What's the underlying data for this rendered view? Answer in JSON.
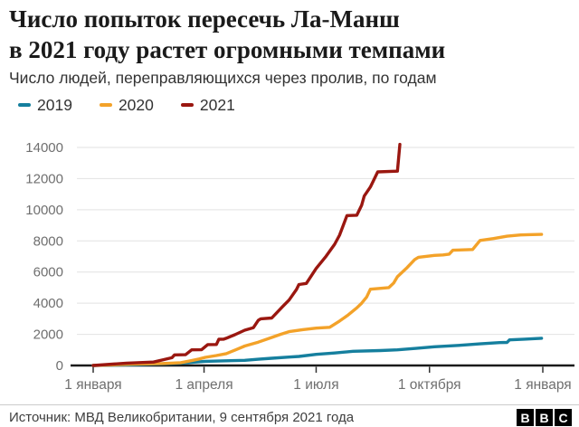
{
  "header": {
    "title_line1": "Число попыток пересечь Ла-Манш",
    "title_line2": "в 2021 году растет огромными темпами",
    "subtitle": "Число людей, переправляющихся через пролив, по годам"
  },
  "legend": {
    "items": [
      {
        "label": "2019",
        "color": "#157f9e"
      },
      {
        "label": "2020",
        "color": "#f3a229"
      },
      {
        "label": "2021",
        "color": "#9a1710"
      }
    ]
  },
  "chart_data": {
    "type": "line",
    "title": "Число попыток пересечь Ла-Манш в 2021 году растет огромными темпами",
    "subtitle": "Число людей, переправляющихся через пролив, по годам",
    "xlabel": "",
    "ylabel": "",
    "ylim": [
      0,
      14600
    ],
    "grid": true,
    "legend_position": "top",
    "y_ticks": [
      0,
      2000,
      4000,
      6000,
      8000,
      10000,
      12000,
      14000
    ],
    "x_ticks": [
      {
        "day": 0,
        "label": "1 января"
      },
      {
        "day": 90,
        "label": "1 апреля"
      },
      {
        "day": 181,
        "label": "1 июля"
      },
      {
        "day": 273,
        "label": "1 октября"
      },
      {
        "day": 365,
        "label": "1 января"
      }
    ],
    "x_unit": "day_of_year",
    "series": [
      {
        "name": "2019",
        "color": "#157f9e",
        "points": [
          [
            0,
            0
          ],
          [
            35,
            60
          ],
          [
            71,
            150
          ],
          [
            91,
            270
          ],
          [
            108,
            300
          ],
          [
            123,
            330
          ],
          [
            134,
            400
          ],
          [
            145,
            465
          ],
          [
            159,
            540
          ],
          [
            167,
            580
          ],
          [
            181,
            715
          ],
          [
            196,
            800
          ],
          [
            211,
            910
          ],
          [
            233,
            960
          ],
          [
            247,
            1005
          ],
          [
            262,
            1100
          ],
          [
            277,
            1200
          ],
          [
            299,
            1300
          ],
          [
            314,
            1390
          ],
          [
            330,
            1470
          ],
          [
            336,
            1480
          ],
          [
            338,
            1645
          ],
          [
            350,
            1690
          ],
          [
            364,
            1750
          ]
        ]
      },
      {
        "name": "2020",
        "color": "#f3a229",
        "points": [
          [
            0,
            0
          ],
          [
            30,
            80
          ],
          [
            57,
            130
          ],
          [
            71,
            180
          ],
          [
            79,
            300
          ],
          [
            86,
            420
          ],
          [
            91,
            520
          ],
          [
            100,
            640
          ],
          [
            108,
            760
          ],
          [
            115,
            980
          ],
          [
            123,
            1250
          ],
          [
            134,
            1500
          ],
          [
            145,
            1800
          ],
          [
            152,
            2000
          ],
          [
            159,
            2170
          ],
          [
            170,
            2300
          ],
          [
            181,
            2400
          ],
          [
            192,
            2450
          ],
          [
            200,
            2850
          ],
          [
            207,
            3250
          ],
          [
            214,
            3700
          ],
          [
            218,
            4000
          ],
          [
            222,
            4400
          ],
          [
            225,
            4900
          ],
          [
            240,
            5000
          ],
          [
            244,
            5300
          ],
          [
            247,
            5700
          ],
          [
            255,
            6300
          ],
          [
            261,
            6800
          ],
          [
            264,
            6950
          ],
          [
            277,
            7070
          ],
          [
            284,
            7100
          ],
          [
            289,
            7150
          ],
          [
            292,
            7400
          ],
          [
            308,
            7450
          ],
          [
            314,
            8030
          ],
          [
            325,
            8150
          ],
          [
            336,
            8300
          ],
          [
            347,
            8380
          ],
          [
            353,
            8400
          ],
          [
            364,
            8420
          ]
        ]
      },
      {
        "name": "2021",
        "color": "#9a1710",
        "points": [
          [
            0,
            0
          ],
          [
            27,
            150
          ],
          [
            49,
            220
          ],
          [
            57,
            370
          ],
          [
            64,
            500
          ],
          [
            66,
            680
          ],
          [
            75,
            690
          ],
          [
            80,
            1005
          ],
          [
            88,
            1010
          ],
          [
            93,
            1340
          ],
          [
            100,
            1350
          ],
          [
            102,
            1685
          ],
          [
            106,
            1690
          ],
          [
            108,
            1750
          ],
          [
            115,
            1975
          ],
          [
            123,
            2265
          ],
          [
            130,
            2420
          ],
          [
            134,
            2900
          ],
          [
            136,
            3000
          ],
          [
            145,
            3050
          ],
          [
            154,
            3800
          ],
          [
            159,
            4200
          ],
          [
            165,
            4880
          ],
          [
            167,
            5200
          ],
          [
            173,
            5270
          ],
          [
            181,
            6235
          ],
          [
            189,
            7010
          ],
          [
            196,
            7785
          ],
          [
            200,
            8365
          ],
          [
            206,
            9625
          ],
          [
            214,
            9650
          ],
          [
            218,
            10300
          ],
          [
            220,
            10880
          ],
          [
            225,
            11460
          ],
          [
            231,
            12430
          ],
          [
            247,
            12480
          ],
          [
            249,
            14200
          ]
        ]
      }
    ]
  },
  "footer": {
    "source": "Источник: МВД Великобритании, 9 сентября 2021 года",
    "logo_letters": [
      "B",
      "B",
      "C"
    ]
  }
}
